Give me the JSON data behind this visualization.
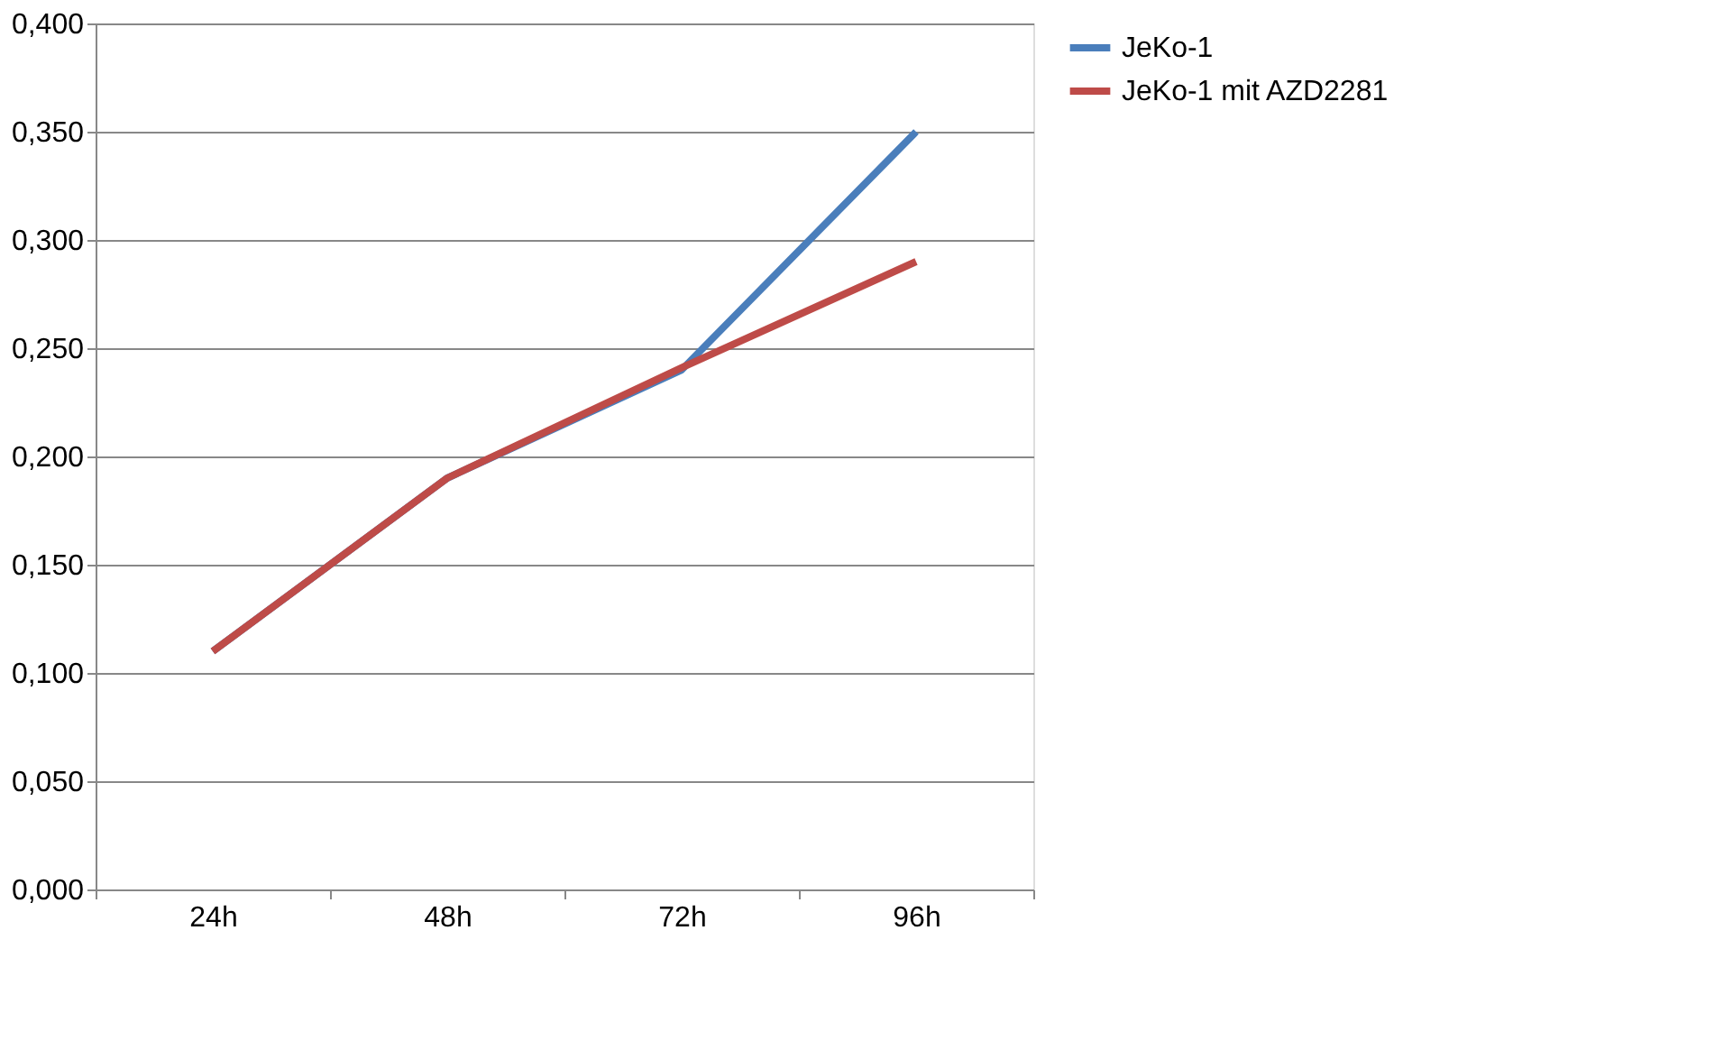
{
  "chart_data": {
    "type": "line",
    "categories": [
      "24h",
      "48h",
      "72h",
      "96h"
    ],
    "series": [
      {
        "name": "JeKo-1",
        "color": "#4a7ebb",
        "values": [
          0.11,
          0.19,
          0.24,
          0.35
        ]
      },
      {
        "name": "JeKo-1 mit AZD2281",
        "color": "#be4b48",
        "values": [
          0.11,
          0.19,
          0.241,
          0.29
        ]
      }
    ],
    "ylim": [
      0,
      0.4
    ],
    "yticks": [
      {
        "value": 0,
        "label": "0,000"
      },
      {
        "value": 0.05,
        "label": "0,050"
      },
      {
        "value": 0.1,
        "label": "0,100"
      },
      {
        "value": 0.15,
        "label": "0,150"
      },
      {
        "value": 0.2,
        "label": "0,200"
      },
      {
        "value": 0.25,
        "label": "0,250"
      },
      {
        "value": 0.3,
        "label": "0,300"
      },
      {
        "value": 0.35,
        "label": "0,350"
      },
      {
        "value": 0.4,
        "label": "0,400"
      }
    ],
    "grid": "y",
    "legend": "right",
    "marker": "none",
    "line_style": "solid"
  }
}
